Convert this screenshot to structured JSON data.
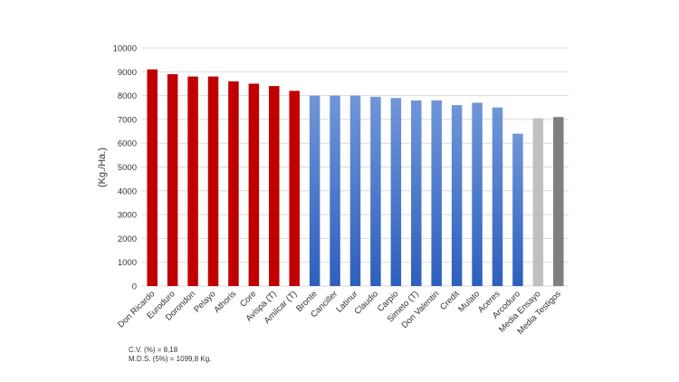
{
  "chart_data": {
    "type": "bar",
    "ylabel": "(Kg./Ha.)",
    "xlabel": "",
    "ylim": [
      0,
      10000
    ],
    "yticks": [
      0,
      1000,
      2000,
      3000,
      4000,
      5000,
      6000,
      7000,
      8000,
      9000,
      10000
    ],
    "grid": true,
    "categories": [
      "Don Ricardo",
      "Euroduro",
      "Dorondon",
      "Pelayo",
      "Athoris",
      "Core",
      "Avispa (T)",
      "Amilcar (T)",
      "Bronte",
      "Canciller",
      "Latinur",
      "Claudio",
      "Carpio",
      "Simeto (T)",
      "Don Valentin",
      "Credit",
      "Mulato",
      "Aceres",
      "Arcoduro",
      "Media Ensayo",
      "Media Testigos"
    ],
    "values": [
      9100,
      8900,
      8800,
      8800,
      8600,
      8500,
      8400,
      8200,
      8000,
      8000,
      8000,
      7950,
      7900,
      7800,
      7800,
      7600,
      7700,
      7500,
      6400,
      7050,
      7100
    ],
    "colors": {
      "red": "#c00000",
      "blue_top": "#7096d8",
      "blue_bottom": "#2d5fbd",
      "light_gray": "#c0c0c0",
      "dark_gray": "#7f7f7f",
      "grid": "#d9d9d9"
    },
    "bar_color_groups": [
      "red",
      "red",
      "red",
      "red",
      "red",
      "red",
      "red",
      "red",
      "blue",
      "blue",
      "blue",
      "blue",
      "blue",
      "blue",
      "blue",
      "blue",
      "blue",
      "blue",
      "blue",
      "light_gray",
      "dark_gray"
    ],
    "annotations": {
      "cv": "C.V. (%) = 8,18",
      "mds": "M.D.S. (5%) = 1099,8 Kg."
    }
  }
}
